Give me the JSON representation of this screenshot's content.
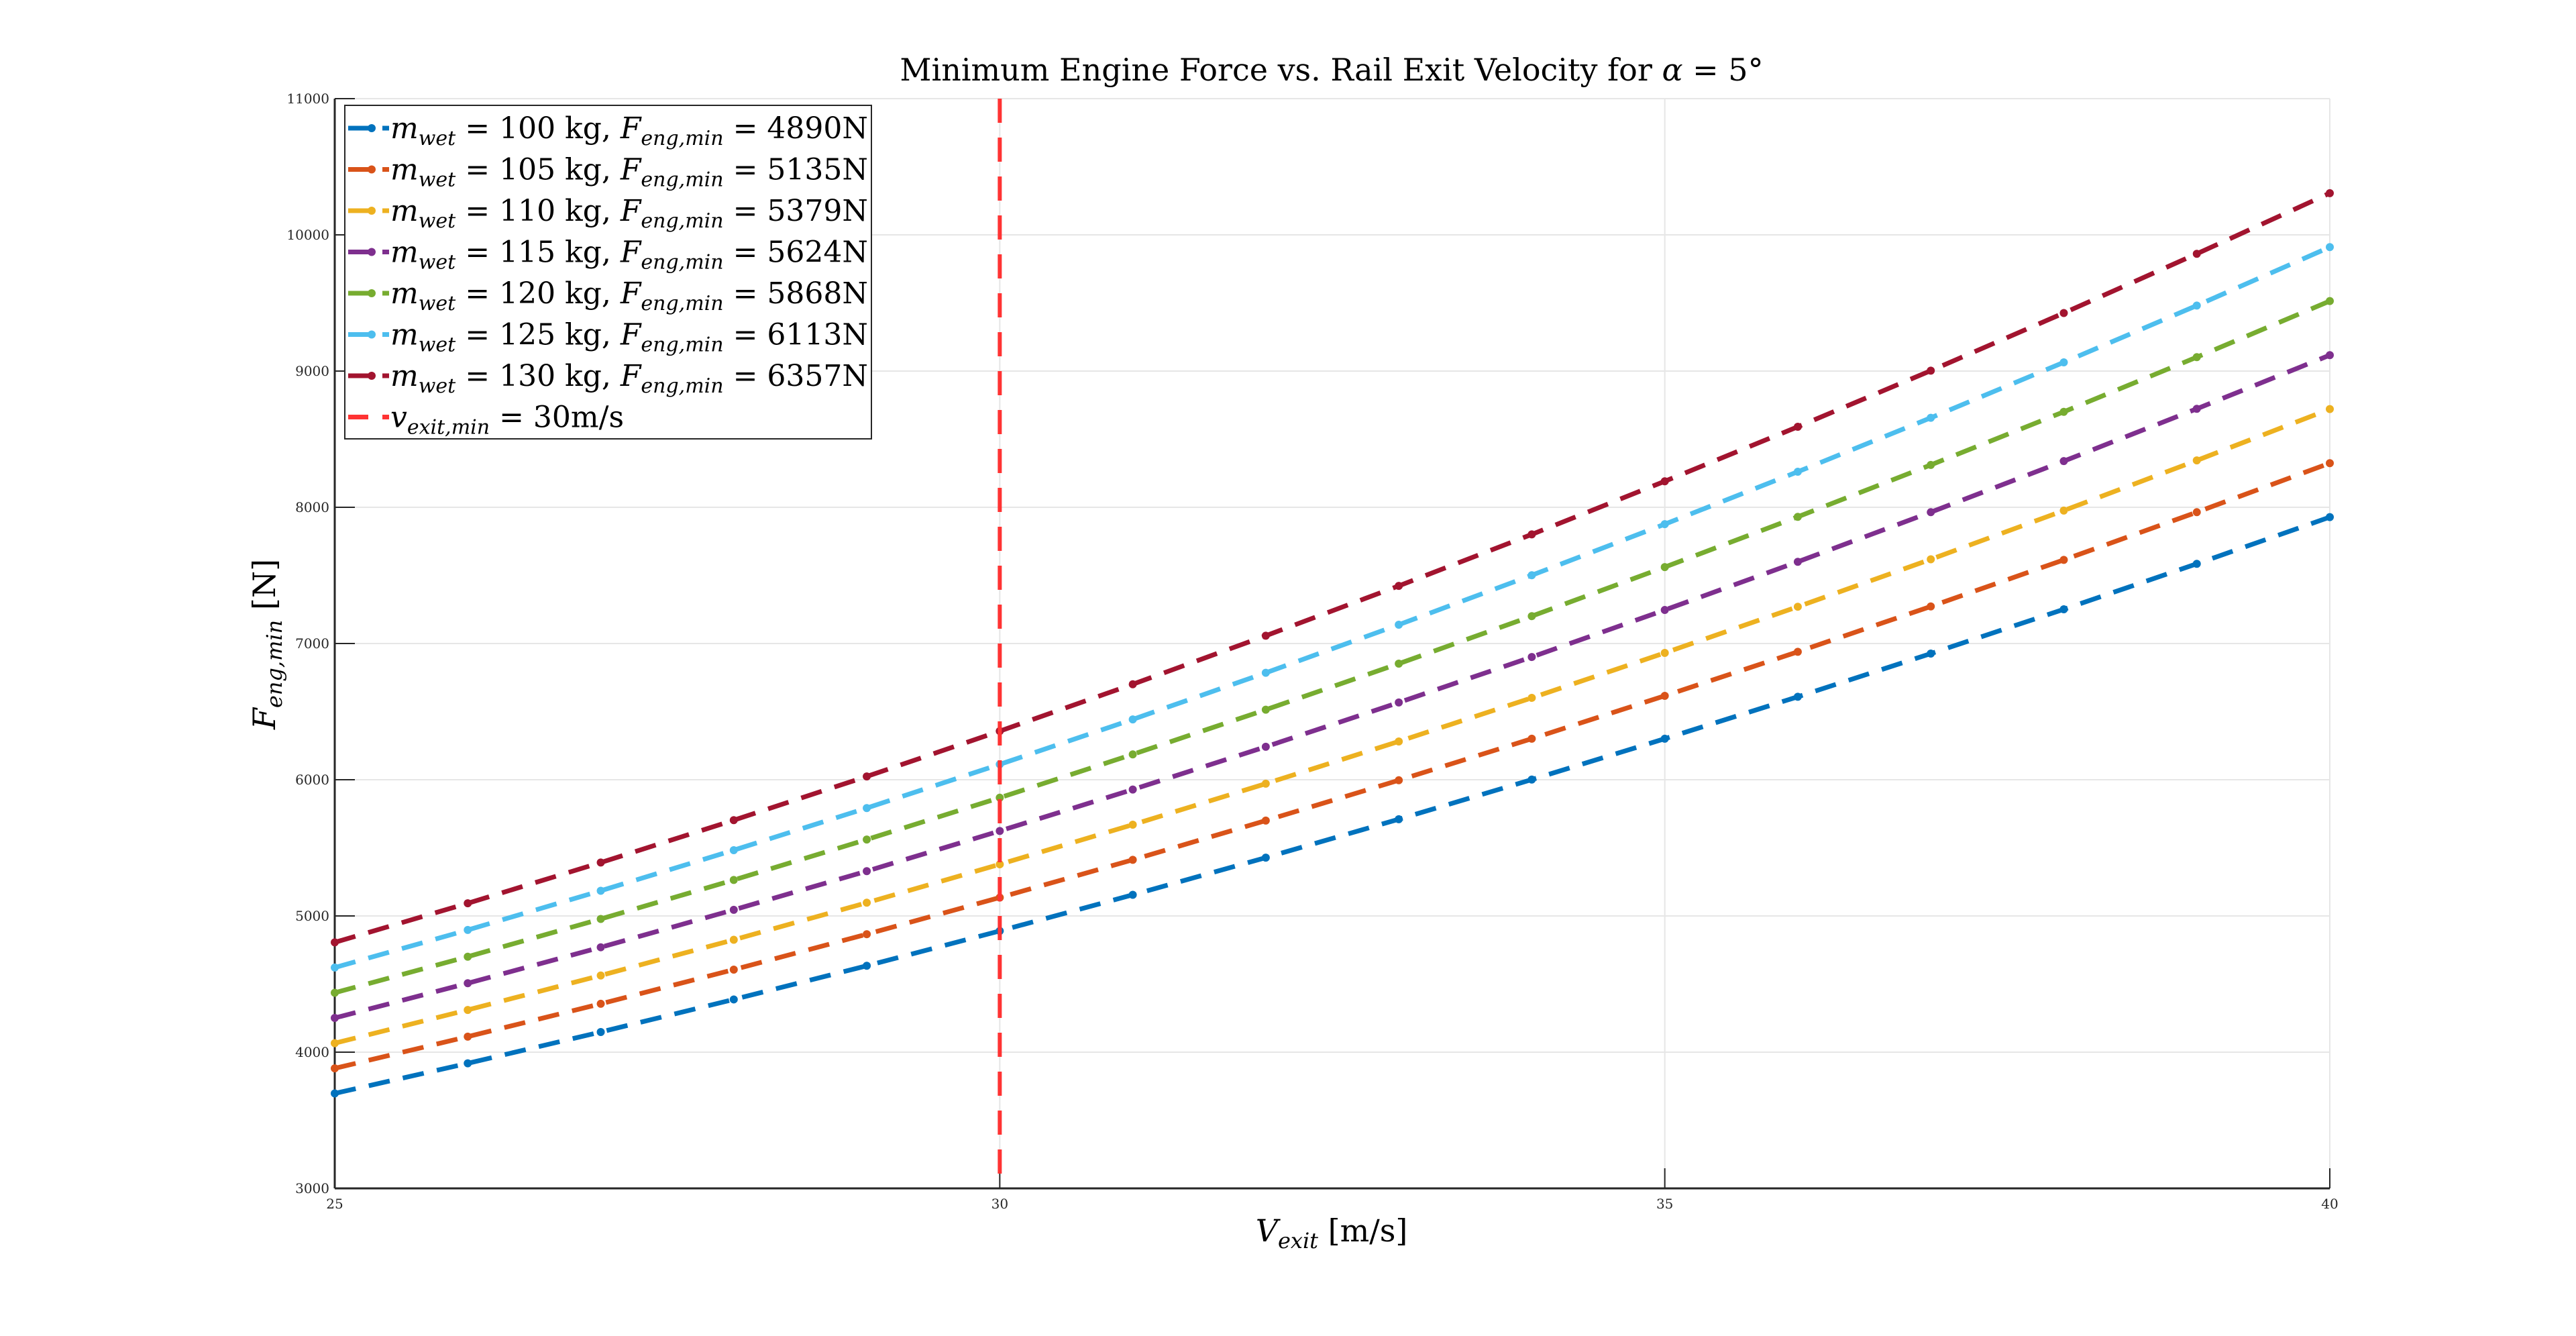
{
  "chart_data": {
    "type": "line",
    "title": "Minimum Engine Force vs. Rail Exit Velocity for α = 5°",
    "title_parts": {
      "text": "Minimum Engine Force vs. Rail Exit Velocity for ",
      "alpha": "α",
      "eq": " = 5°"
    },
    "xlabel": {
      "var": "V",
      "sub": "exit",
      "unit": " [m/s]"
    },
    "ylabel": {
      "var": "F",
      "sub": "eng,min",
      "unit": " [N]"
    },
    "xlim": [
      25,
      40
    ],
    "ylim": [
      3000,
      11000
    ],
    "xticks": [
      25,
      30,
      35,
      40
    ],
    "yticks": [
      3000,
      4000,
      5000,
      6000,
      7000,
      8000,
      9000,
      10000,
      11000
    ],
    "grid": true,
    "legend_placement": "top-left",
    "line_style": "dashed with dot markers",
    "x": [
      25,
      26,
      27,
      28,
      29,
      30,
      31,
      32,
      33,
      34,
      35,
      36,
      37,
      38,
      39,
      40
    ],
    "legend_symbols": {
      "m": "m",
      "wet": "wet",
      "F": "F",
      "engmin": "eng,min",
      "eq": " = ",
      "sep": ", "
    },
    "series": [
      {
        "name": "m_wet = 100 kg, F_eng,min = 4890N",
        "mass": "100 kg",
        "force": "4890N",
        "color": "#0072BD",
        "values": [
          3697,
          3918,
          4148,
          4387,
          4634,
          4890,
          5155,
          5428,
          5710,
          6001,
          6301,
          6609,
          6926,
          7251,
          7585,
          7928
        ]
      },
      {
        "name": "m_wet = 105 kg, F_eng,min = 5135N",
        "mass": "105 kg",
        "force": "5135N",
        "color": "#D95319",
        "values": [
          3881,
          4114,
          4355,
          4606,
          4866,
          5135,
          5412,
          5700,
          5996,
          6301,
          6616,
          6939,
          7272,
          7614,
          7964,
          8324
        ]
      },
      {
        "name": "m_wet = 110 kg, F_eng,min = 5379N",
        "mass": "110 kg",
        "force": "5379N",
        "color": "#EDB120",
        "values": [
          4066,
          4310,
          4563,
          4825,
          5097,
          5379,
          5670,
          5971,
          6281,
          6601,
          6931,
          7270,
          7618,
          7976,
          8344,
          8721
        ]
      },
      {
        "name": "m_wet = 115 kg, F_eng,min = 5624N",
        "mass": "115 kg",
        "force": "5624N",
        "color": "#7E2F8E",
        "values": [
          4251,
          4506,
          4770,
          5045,
          5329,
          5624,
          5928,
          6242,
          6567,
          6901,
          7246,
          7600,
          7964,
          8339,
          8723,
          9117
        ]
      },
      {
        "name": "m_wet = 120 kg, F_eng,min = 5868N",
        "mass": "120 kg",
        "force": "5868N",
        "color": "#77AC30",
        "values": [
          4436,
          4701,
          4978,
          5264,
          5561,
          5868,
          6186,
          6514,
          6852,
          7201,
          7561,
          7930,
          8311,
          8701,
          9102,
          9514
        ]
      },
      {
        "name": "m_wet = 125 kg, F_eng,min = 6113N",
        "mass": "125 kg",
        "force": "6113N",
        "color": "#4DBEEE",
        "values": [
          4621,
          4897,
          5185,
          5483,
          5792,
          6113,
          6443,
          6785,
          7138,
          7501,
          7876,
          8261,
          8657,
          9064,
          9481,
          9910
        ]
      },
      {
        "name": "m_wet = 130 kg, F_eng,min = 6357N",
        "mass": "130 kg",
        "force": "6357N",
        "color": "#A2142F",
        "values": [
          4806,
          5093,
          5392,
          5703,
          6024,
          6357,
          6701,
          7057,
          7423,
          7801,
          8191,
          8591,
          9003,
          9426,
          9861,
          10306
        ]
      }
    ],
    "vline": {
      "x": 30,
      "name": "v_exit,min = 30m/s",
      "var": "v",
      "sub": "exit,min",
      "text": " = 30m/s",
      "color": "#FF3333"
    }
  }
}
